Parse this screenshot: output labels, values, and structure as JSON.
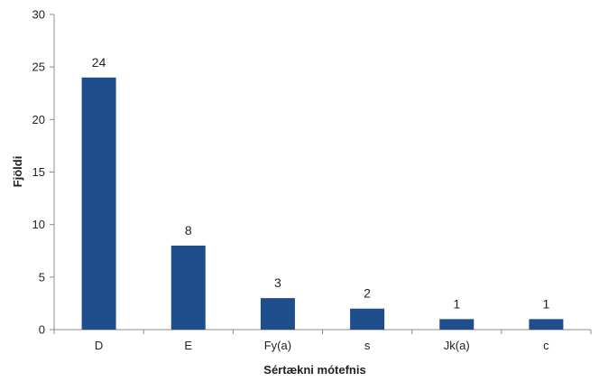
{
  "chart_data": {
    "type": "bar",
    "title": "",
    "xlabel": "Sértækni mótefnis",
    "ylabel": "Fjöldi",
    "categories": [
      "D",
      "E",
      "Fy(a)",
      "s",
      "Jk(a)",
      "c"
    ],
    "values": [
      24,
      8,
      3,
      2,
      1,
      1
    ],
    "data_labels": [
      "24",
      "8",
      "3",
      "2",
      "1",
      "1"
    ],
    "ylim": [
      0,
      30
    ],
    "yticks": [
      0,
      5,
      10,
      15,
      20,
      25,
      30
    ],
    "ytick_labels": [
      "0",
      "5",
      "10",
      "15",
      "20",
      "25",
      "30"
    ],
    "grid": false,
    "legend": "none",
    "bar_color": "#1f4e8c",
    "axis_color": "#8c8c8c"
  }
}
